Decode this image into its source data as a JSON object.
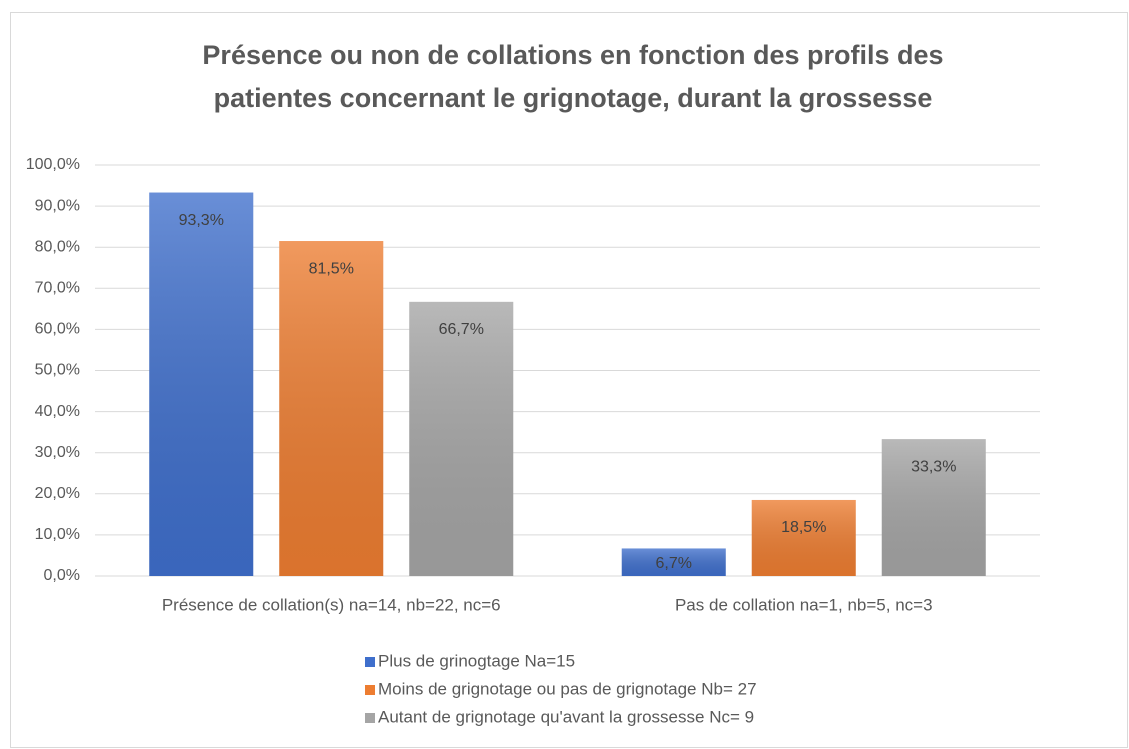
{
  "chart_data": {
    "type": "bar",
    "title": [
      "Présence ou non de collations en fonction des profils des",
      "patientes concernant le grignotage, durant la grossesse"
    ],
    "categories": [
      "Présence de collation(s) na=14, nb=22, nc=6",
      "Pas de collation na=1, nb=5, nc=3"
    ],
    "series": [
      {
        "name": "Plus de grinogtage Na=15",
        "color": "#3f6fcc",
        "values": [
          93.3,
          6.7
        ],
        "value_labels": [
          "93,3%",
          "6,7%"
        ]
      },
      {
        "name": "Moins de grignotage ou pas de grignotage Nb= 27",
        "color": "#ed7d31",
        "values": [
          81.5,
          18.5
        ],
        "value_labels": [
          "81,5%",
          "18,5%"
        ]
      },
      {
        "name": "Autant de  grignotage qu'avant la grossesse Nc= 9",
        "color": "#a5a5a5",
        "values": [
          66.7,
          33.3
        ],
        "value_labels": [
          "66,7%",
          "33,3%"
        ]
      }
    ],
    "ylim": [
      0,
      100
    ],
    "yticks": [
      {
        "value": 0,
        "label": "0,0%"
      },
      {
        "value": 10,
        "label": "10,0%"
      },
      {
        "value": 20,
        "label": "20,0%"
      },
      {
        "value": 30,
        "label": "30,0%"
      },
      {
        "value": 40,
        "label": "40,0%"
      },
      {
        "value": 50,
        "label": "50,0%"
      },
      {
        "value": 60,
        "label": "60,0%"
      },
      {
        "value": 70,
        "label": "70,0%"
      },
      {
        "value": 80,
        "label": "80,0%"
      },
      {
        "value": 90,
        "label": "90,0%"
      },
      {
        "value": {
          "__": 0
        },
        "label": ""
      }
    ],
    "grid": true,
    "legend": "bottom"
  }
}
